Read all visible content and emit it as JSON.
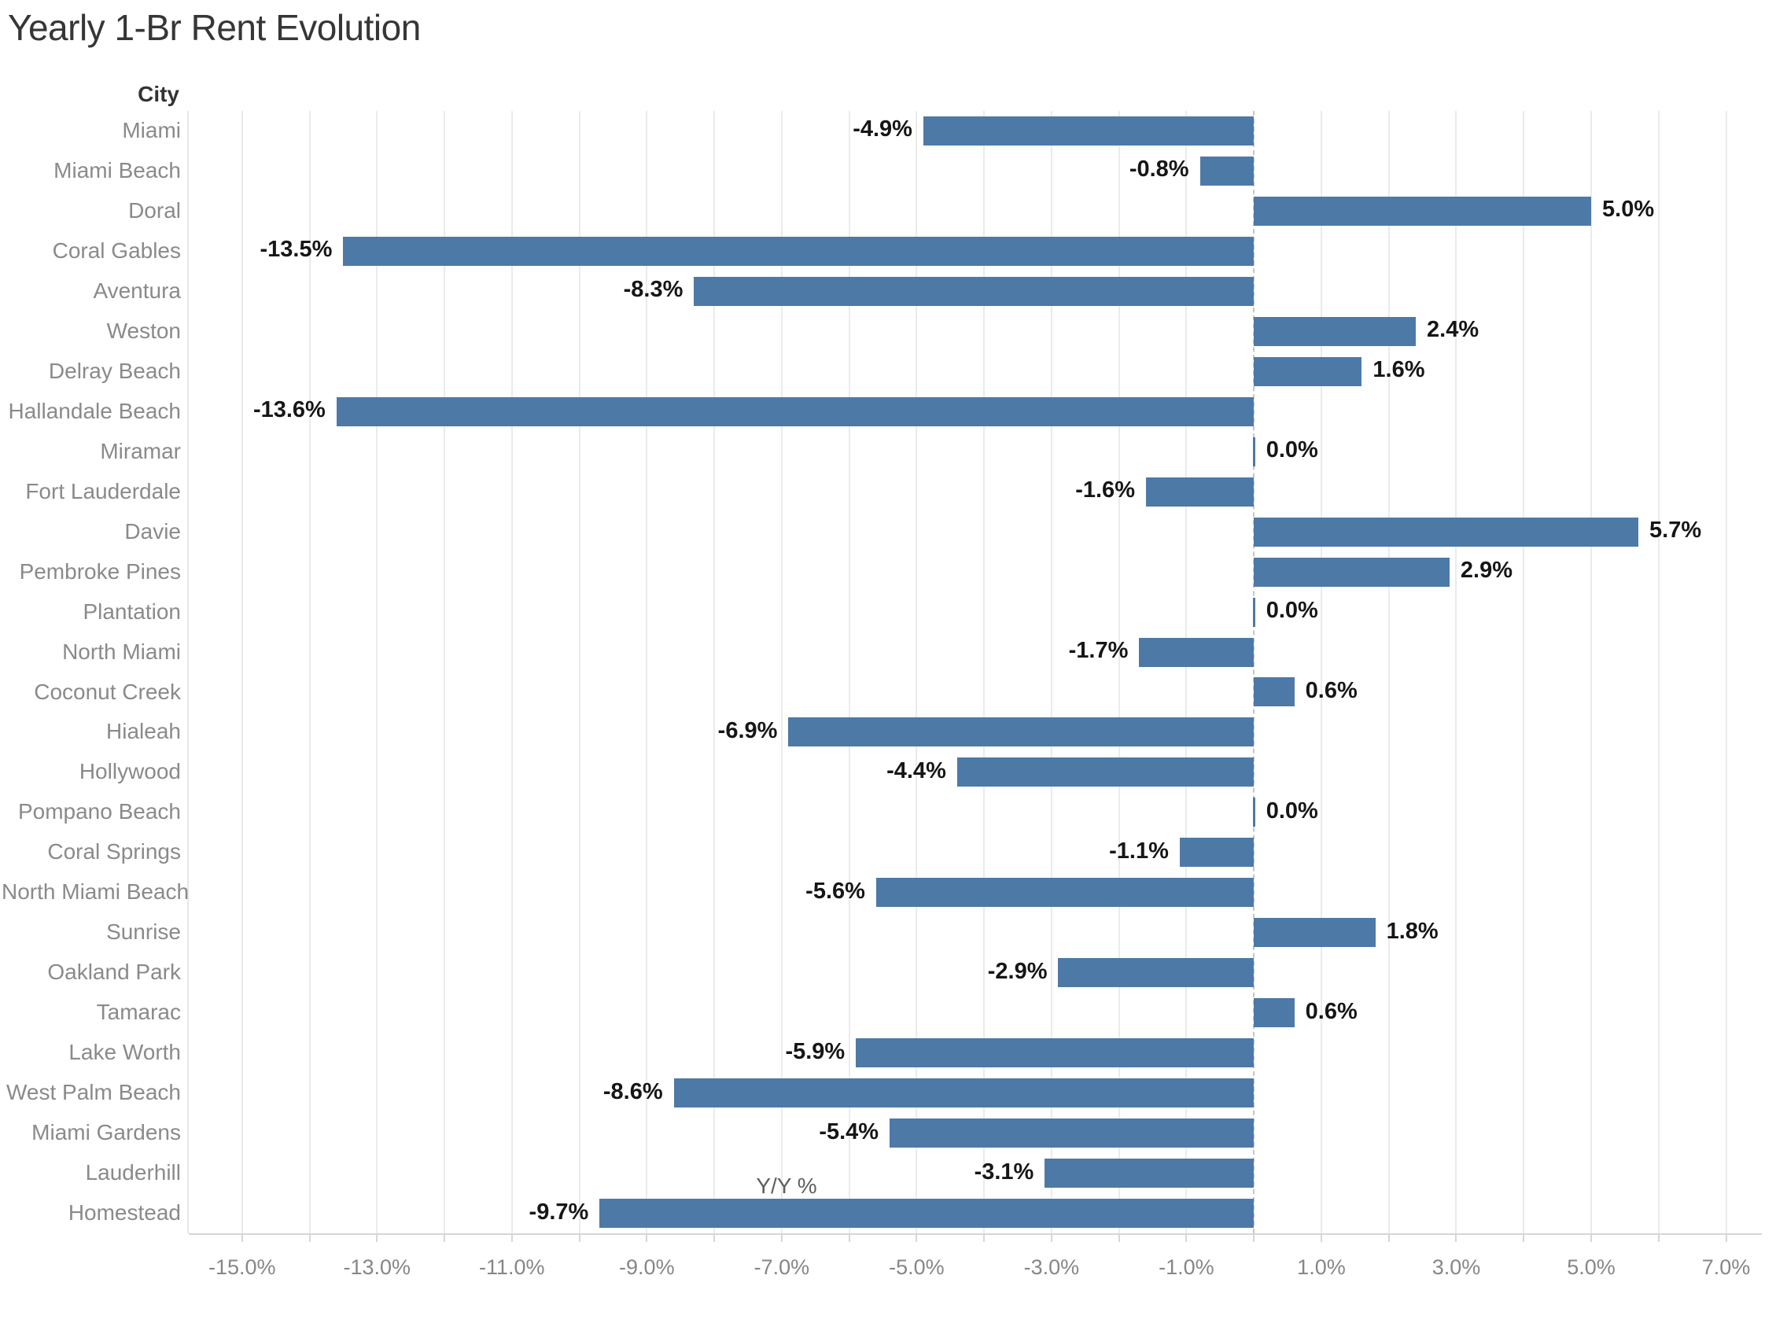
{
  "title": "Yearly 1-Br Rent Evolution",
  "accent_color": "#4d79a7",
  "chart_data": {
    "type": "bar",
    "orientation": "horizontal",
    "title": "Yearly 1-Br Rent Evolution",
    "category_header": "City",
    "xlabel": "Y/Y %",
    "xlim": [
      -15.79,
      7.53
    ],
    "grid": true,
    "gridline_step_pct": 1.0,
    "bar_color": "#4d79a7",
    "zero_line": "dashed",
    "categories": [
      "Miami",
      "Miami Beach",
      "Doral",
      "Coral Gables",
      "Aventura",
      "Weston",
      "Delray Beach",
      "Hallandale Beach",
      "Miramar",
      "Fort Lauderdale",
      "Davie",
      "Pembroke Pines",
      "Plantation",
      "North Miami",
      "Coconut Creek",
      "Hialeah",
      "Hollywood",
      "Pompano Beach",
      "Coral Springs",
      "North Miami Beach",
      "Sunrise",
      "Oakland Park",
      "Tamarac",
      "Lake Worth",
      "West Palm Beach",
      "Miami Gardens",
      "Lauderhill",
      "Homestead"
    ],
    "values": [
      -4.9,
      -0.8,
      5.0,
      -13.5,
      -8.3,
      2.4,
      1.6,
      -13.6,
      0.0,
      -1.6,
      5.7,
      2.9,
      0.0,
      -1.7,
      0.6,
      -6.9,
      -4.4,
      0.0,
      -1.1,
      -5.6,
      1.8,
      -2.9,
      0.6,
      -5.9,
      -8.6,
      -5.4,
      -3.1,
      -9.7
    ],
    "value_labels": [
      "-4.9%",
      "-0.8%",
      "5.0%",
      "-13.5%",
      "-8.3%",
      "2.4%",
      "1.6%",
      "-13.6%",
      "0.0%",
      "-1.6%",
      "5.7%",
      "2.9%",
      "0.0%",
      "-1.7%",
      "0.6%",
      "-6.9%",
      "-4.4%",
      "0.0%",
      "-1.1%",
      "-5.6%",
      "1.8%",
      "-2.9%",
      "0.6%",
      "-5.9%",
      "-8.6%",
      "-5.4%",
      "-3.1%",
      "-9.7%"
    ],
    "x_ticks": [
      {
        "value": -15,
        "label": "-15.0%"
      },
      {
        "value": -13,
        "label": "-13.0%"
      },
      {
        "value": -11,
        "label": "-11.0%"
      },
      {
        "value": -9,
        "label": "-9.0%"
      },
      {
        "value": -7,
        "label": "-7.0%"
      },
      {
        "value": -5,
        "label": "-5.0%"
      },
      {
        "value": -3,
        "label": "-3.0%"
      },
      {
        "value": -1,
        "label": "-1.0%"
      },
      {
        "value": 1,
        "label": "1.0%"
      },
      {
        "value": 3,
        "label": "3.0%"
      },
      {
        "value": 5,
        "label": "5.0%"
      },
      {
        "value": 7,
        "label": "7.0%"
      }
    ]
  }
}
